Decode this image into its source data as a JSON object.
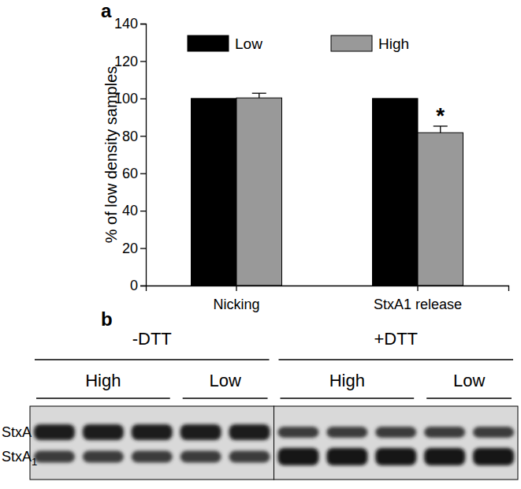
{
  "chart_data": {
    "type": "bar",
    "panel_label": "a",
    "y_label": "% of low density samples",
    "categories": [
      "Nicking",
      "StxA1 release"
    ],
    "series": [
      {
        "name": "Low",
        "color": "#000000",
        "values": [
          100,
          100
        ]
      },
      {
        "name": "High",
        "color": "#999999",
        "values": [
          100.3,
          81.7
        ],
        "errors": [
          2.5,
          3.5
        ]
      }
    ],
    "annotations": [
      {
        "text": "*",
        "category": "StxA1 release",
        "series": "High"
      }
    ],
    "ylim": [
      0,
      140
    ],
    "yticks": [
      0,
      20,
      40,
      60,
      80,
      100,
      120,
      140
    ],
    "legend": "top",
    "grid": false
  },
  "blot": {
    "panel_label": "b",
    "conditions": [
      {
        "label": "-DTT",
        "subgroups": [
          {
            "label": "High",
            "lanes": 3
          },
          {
            "label": "Low",
            "lanes": 2
          }
        ]
      },
      {
        "label": "+DTT",
        "subgroups": [
          {
            "label": "High",
            "lanes": 3
          },
          {
            "label": "Low",
            "lanes": 2
          }
        ]
      }
    ],
    "bands": [
      {
        "label": "StxA"
      },
      {
        "label": "StxA",
        "subscript": "1"
      }
    ]
  }
}
